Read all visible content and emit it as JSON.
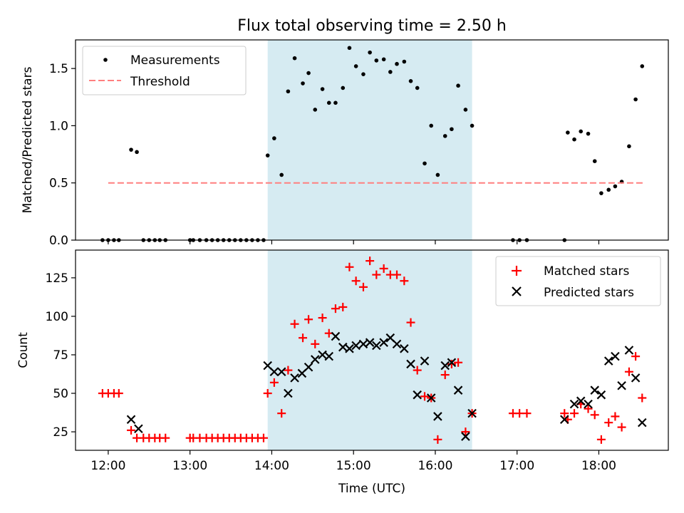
{
  "title": "Flux total observing time = 2.50 h",
  "chart_data": [
    {
      "type": "scatter",
      "panel": "top",
      "ylabel": "Matched/Predicted stars",
      "xlabel": "",
      "ylim": [
        0,
        1.75
      ],
      "yticks": [
        0.0,
        0.5,
        1.0,
        1.5
      ],
      "ytick_labels": [
        "0.0",
        "0.5",
        "1.0",
        "1.5"
      ],
      "xlim": [
        11.6,
        18.85
      ],
      "legend": {
        "placement": "top-left",
        "entries": [
          "Measurements",
          "Threshold"
        ]
      },
      "shaded_region": {
        "x": [
          13.95,
          16.45
        ],
        "color": "#add8e6"
      },
      "threshold": {
        "name": "Threshold",
        "y": 0.5,
        "x": [
          12.0,
          18.55
        ],
        "color": "#ff7f7f",
        "style": "dashed"
      },
      "series": [
        {
          "name": "Measurements",
          "color": "#000000",
          "marker": "dot",
          "points": [
            [
              11.93,
              0
            ],
            [
              12.0,
              0
            ],
            [
              12.07,
              0
            ],
            [
              12.13,
              0
            ],
            [
              12.28,
              0.79
            ],
            [
              12.35,
              0.77
            ],
            [
              12.43,
              0
            ],
            [
              12.5,
              0
            ],
            [
              12.57,
              0
            ],
            [
              12.63,
              0
            ],
            [
              12.7,
              0
            ],
            [
              13.0,
              0
            ],
            [
              13.04,
              0
            ],
            [
              13.12,
              0
            ],
            [
              13.2,
              0
            ],
            [
              13.27,
              0
            ],
            [
              13.34,
              0
            ],
            [
              13.41,
              0
            ],
            [
              13.48,
              0
            ],
            [
              13.55,
              0
            ],
            [
              13.62,
              0
            ],
            [
              13.69,
              0
            ],
            [
              13.76,
              0
            ],
            [
              13.83,
              0
            ],
            [
              13.9,
              0
            ],
            [
              13.95,
              0.74
            ],
            [
              14.03,
              0.89
            ],
            [
              14.12,
              0.57
            ],
            [
              14.2,
              1.3
            ],
            [
              14.28,
              1.59
            ],
            [
              14.38,
              1.37
            ],
            [
              14.45,
              1.46
            ],
            [
              14.53,
              1.14
            ],
            [
              14.62,
              1.32
            ],
            [
              14.7,
              1.2
            ],
            [
              14.78,
              1.2
            ],
            [
              14.87,
              1.33
            ],
            [
              14.95,
              1.68
            ],
            [
              15.03,
              1.52
            ],
            [
              15.12,
              1.45
            ],
            [
              15.2,
              1.64
            ],
            [
              15.28,
              1.57
            ],
            [
              15.37,
              1.58
            ],
            [
              15.45,
              1.47
            ],
            [
              15.53,
              1.54
            ],
            [
              15.62,
              1.56
            ],
            [
              15.7,
              1.39
            ],
            [
              15.78,
              1.33
            ],
            [
              15.87,
              0.67
            ],
            [
              15.95,
              1.0
            ],
            [
              16.03,
              0.57
            ],
            [
              16.12,
              0.91
            ],
            [
              16.2,
              0.97
            ],
            [
              16.28,
              1.35
            ],
            [
              16.37,
              1.14
            ],
            [
              16.45,
              1.0
            ],
            [
              16.95,
              0
            ],
            [
              17.03,
              0
            ],
            [
              17.12,
              0
            ],
            [
              17.58,
              0
            ],
            [
              17.62,
              0.94
            ],
            [
              17.7,
              0.88
            ],
            [
              17.78,
              0.95
            ],
            [
              17.87,
              0.93
            ],
            [
              17.95,
              0.69
            ],
            [
              18.03,
              0.41
            ],
            [
              18.12,
              0.44
            ],
            [
              18.2,
              0.47
            ],
            [
              18.28,
              0.51
            ],
            [
              18.37,
              0.82
            ],
            [
              18.45,
              1.23
            ],
            [
              18.53,
              1.52
            ]
          ]
        }
      ]
    },
    {
      "type": "scatter",
      "panel": "bottom",
      "ylabel": "Count",
      "xlabel": "Time (UTC)",
      "ylim": [
        13,
        143
      ],
      "yticks": [
        25,
        50,
        75,
        100,
        125
      ],
      "ytick_labels": [
        "25",
        "50",
        "75",
        "100",
        "125"
      ],
      "xlim": [
        11.6,
        18.85
      ],
      "xticks": [
        12,
        13,
        14,
        15,
        16,
        17,
        18
      ],
      "xtick_labels": [
        "12:00",
        "13:00",
        "14:00",
        "15:00",
        "16:00",
        "17:00",
        "18:00"
      ],
      "legend": {
        "placement": "top-right",
        "entries": [
          "Matched stars",
          "Predicted stars"
        ]
      },
      "shaded_region": {
        "x": [
          13.95,
          16.45
        ],
        "color": "#add8e6"
      },
      "series": [
        {
          "name": "Matched stars",
          "color": "#ff0000",
          "marker": "plus",
          "points": [
            [
              11.93,
              50
            ],
            [
              12.0,
              50
            ],
            [
              12.07,
              50
            ],
            [
              12.13,
              50
            ],
            [
              12.28,
              26
            ],
            [
              12.35,
              21
            ],
            [
              12.43,
              21
            ],
            [
              12.5,
              21
            ],
            [
              12.57,
              21
            ],
            [
              12.63,
              21
            ],
            [
              12.7,
              21
            ],
            [
              13.0,
              21
            ],
            [
              13.04,
              21
            ],
            [
              13.12,
              21
            ],
            [
              13.2,
              21
            ],
            [
              13.27,
              21
            ],
            [
              13.34,
              21
            ],
            [
              13.41,
              21
            ],
            [
              13.48,
              21
            ],
            [
              13.55,
              21
            ],
            [
              13.62,
              21
            ],
            [
              13.69,
              21
            ],
            [
              13.76,
              21
            ],
            [
              13.83,
              21
            ],
            [
              13.9,
              21
            ],
            [
              13.95,
              50
            ],
            [
              14.03,
              57
            ],
            [
              14.12,
              37
            ],
            [
              14.2,
              65
            ],
            [
              14.28,
              95
            ],
            [
              14.38,
              86
            ],
            [
              14.45,
              98
            ],
            [
              14.53,
              82
            ],
            [
              14.62,
              99
            ],
            [
              14.7,
              89
            ],
            [
              14.78,
              105
            ],
            [
              14.87,
              106
            ],
            [
              14.95,
              132
            ],
            [
              15.03,
              123
            ],
            [
              15.12,
              119
            ],
            [
              15.2,
              136
            ],
            [
              15.28,
              127
            ],
            [
              15.37,
              131
            ],
            [
              15.45,
              127
            ],
            [
              15.53,
              127
            ],
            [
              15.62,
              123
            ],
            [
              15.7,
              96
            ],
            [
              15.78,
              65
            ],
            [
              15.87,
              48
            ],
            [
              15.95,
              47
            ],
            [
              16.03,
              20
            ],
            [
              16.12,
              62
            ],
            [
              16.2,
              69
            ],
            [
              16.28,
              70
            ],
            [
              16.37,
              25
            ],
            [
              16.45,
              37
            ],
            [
              16.95,
              37
            ],
            [
              17.03,
              37
            ],
            [
              17.12,
              37
            ],
            [
              17.58,
              37
            ],
            [
              17.62,
              33
            ],
            [
              17.7,
              37
            ],
            [
              17.78,
              43
            ],
            [
              17.87,
              40
            ],
            [
              17.95,
              36
            ],
            [
              18.03,
              20
            ],
            [
              18.12,
              31
            ],
            [
              18.2,
              35
            ],
            [
              18.28,
              28
            ],
            [
              18.37,
              64
            ],
            [
              18.45,
              74
            ],
            [
              18.53,
              47
            ]
          ]
        },
        {
          "name": "Predicted stars",
          "color": "#000000",
          "marker": "x",
          "points": [
            [
              12.28,
              33
            ],
            [
              12.37,
              27
            ],
            [
              13.95,
              68
            ],
            [
              14.03,
              64
            ],
            [
              14.12,
              64
            ],
            [
              14.2,
              50
            ],
            [
              14.28,
              60
            ],
            [
              14.37,
              63
            ],
            [
              14.45,
              67
            ],
            [
              14.53,
              72
            ],
            [
              14.62,
              75
            ],
            [
              14.7,
              74
            ],
            [
              14.78,
              87
            ],
            [
              14.87,
              80
            ],
            [
              14.95,
              79
            ],
            [
              15.03,
              81
            ],
            [
              15.12,
              82
            ],
            [
              15.2,
              83
            ],
            [
              15.28,
              81
            ],
            [
              15.37,
              83
            ],
            [
              15.45,
              86
            ],
            [
              15.53,
              82
            ],
            [
              15.62,
              79
            ],
            [
              15.7,
              69
            ],
            [
              15.78,
              49
            ],
            [
              15.87,
              71
            ],
            [
              15.95,
              47
            ],
            [
              16.03,
              35
            ],
            [
              16.12,
              68
            ],
            [
              16.2,
              70
            ],
            [
              16.28,
              52
            ],
            [
              16.37,
              22
            ],
            [
              16.45,
              37
            ],
            [
              17.58,
              33
            ],
            [
              17.7,
              43
            ],
            [
              17.78,
              45
            ],
            [
              17.87,
              43
            ],
            [
              17.95,
              52
            ],
            [
              18.03,
              49
            ],
            [
              18.12,
              71
            ],
            [
              18.2,
              74
            ],
            [
              18.28,
              55
            ],
            [
              18.37,
              78
            ],
            [
              18.45,
              60
            ],
            [
              18.53,
              31
            ]
          ]
        }
      ]
    }
  ]
}
